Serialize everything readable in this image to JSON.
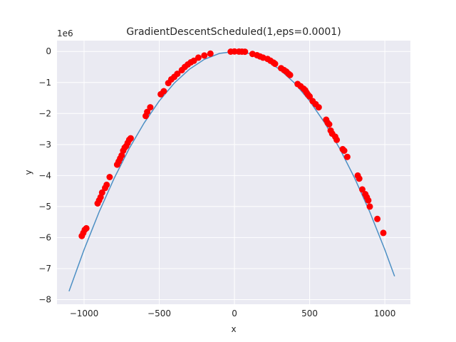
{
  "chart_data": {
    "type": "scatter",
    "title": "GradientDescentScheduled(1,eps=0.0001)",
    "xlabel": "x",
    "ylabel": "y",
    "offset_text": "1e6",
    "xlim": [
      -1180,
      1170
    ],
    "ylim": [
      -8150000,
      350000
    ],
    "x_ticks": [
      -1000,
      -500,
      0,
      500,
      1000
    ],
    "x_tick_labels": [
      "−1000",
      "−500",
      "0",
      "500",
      "1000"
    ],
    "y_ticks": [
      0,
      -1000000,
      -2000000,
      -3000000,
      -4000000,
      -5000000,
      -6000000,
      -7000000,
      -8000000
    ],
    "y_tick_labels": [
      "0",
      "−1",
      "−2",
      "−3",
      "−4",
      "−5",
      "−6",
      "−7",
      "−8"
    ],
    "grid": true,
    "background": "#eaeaf2",
    "line_series": {
      "color": "#4c8fc4",
      "x": [
        -1100,
        -1000,
        -900,
        -800,
        -700,
        -600,
        -500,
        -400,
        -300,
        -200,
        -100,
        0,
        100,
        200,
        300,
        400,
        500,
        600,
        700,
        800,
        900,
        1000,
        1065
      ],
      "y": [
        -7730000,
        -6390000,
        -5175000,
        -4090000,
        -3130000,
        -2300000,
        -1595000,
        -1020000,
        -575000,
        -255000,
        -64000,
        0,
        -64000,
        -255000,
        -575000,
        -1020000,
        -1595000,
        -2300000,
        -3130000,
        -4090000,
        -5175000,
        -6390000,
        -7250000
      ]
    },
    "scatter_series": {
      "color": "#ff0000",
      "x": [
        -1015,
        -1005,
        -995,
        -985,
        -910,
        -900,
        -890,
        -880,
        -860,
        -850,
        -830,
        -780,
        -770,
        -760,
        -750,
        -740,
        -730,
        -720,
        -710,
        -700,
        -690,
        -590,
        -580,
        -560,
        -490,
        -470,
        -440,
        -420,
        -400,
        -380,
        -350,
        -330,
        -310,
        -290,
        -270,
        -240,
        -200,
        -160,
        -25,
        0,
        30,
        50,
        70,
        120,
        150,
        170,
        190,
        220,
        240,
        260,
        270,
        310,
        330,
        345,
        360,
        370,
        420,
        440,
        460,
        470,
        480,
        490,
        500,
        520,
        540,
        560,
        610,
        620,
        630,
        640,
        650,
        670,
        680,
        720,
        730,
        750,
        820,
        830,
        850,
        870,
        880,
        890,
        900,
        950,
        990
      ],
      "y": [
        -5950000,
        -5850000,
        -5750000,
        -5700000,
        -4900000,
        -4800000,
        -4700000,
        -4550000,
        -4400000,
        -4300000,
        -4050000,
        -3650000,
        -3550000,
        -3450000,
        -3350000,
        -3200000,
        -3100000,
        -3050000,
        -2950000,
        -2850000,
        -2800000,
        -2080000,
        -1950000,
        -1800000,
        -1380000,
        -1280000,
        -1020000,
        -900000,
        -820000,
        -720000,
        -600000,
        -500000,
        -420000,
        -350000,
        -300000,
        -200000,
        -130000,
        -70000,
        -5000,
        0,
        -3000,
        -5000,
        -8000,
        -80000,
        -120000,
        -160000,
        -200000,
        -240000,
        -300000,
        -360000,
        -400000,
        -540000,
        -600000,
        -650000,
        -720000,
        -760000,
        -1050000,
        -1120000,
        -1200000,
        -1250000,
        -1330000,
        -1400000,
        -1450000,
        -1600000,
        -1700000,
        -1800000,
        -2200000,
        -2300000,
        -2350000,
        -2550000,
        -2650000,
        -2750000,
        -2850000,
        -3150000,
        -3200000,
        -3400000,
        -4000000,
        -4100000,
        -4450000,
        -4600000,
        -4700000,
        -4800000,
        -5000000,
        -5400000,
        -5850000
      ]
    }
  }
}
